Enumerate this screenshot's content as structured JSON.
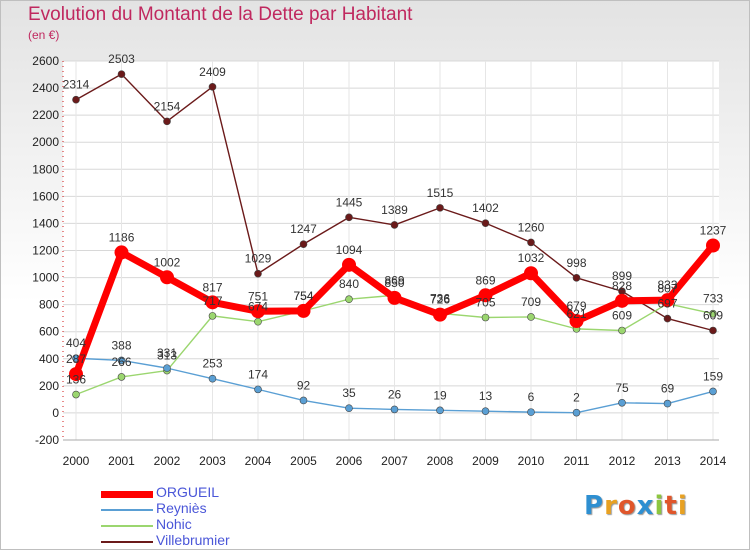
{
  "header": {
    "title": "Evolution du Montant de la Dette par Habitant",
    "unit": "(en €)"
  },
  "logo": {
    "letters": [
      "P",
      "r",
      "o",
      "x",
      "i",
      "t",
      "i"
    ],
    "colors": [
      "#2e8fd1",
      "#e8a122",
      "#e0562b",
      "#2e8fd1",
      "#8dc63f",
      "#e0562b",
      "#e8a122"
    ]
  },
  "chart_data": {
    "type": "line",
    "x": [
      "2000",
      "2001",
      "2002",
      "2003",
      "2004",
      "2005",
      "2006",
      "2007",
      "2008",
      "2009",
      "2010",
      "2011",
      "2012",
      "2013",
      "2014"
    ],
    "ylim": [
      -200,
      2600
    ],
    "yticks": [
      -200,
      0,
      200,
      400,
      600,
      800,
      1000,
      1200,
      1400,
      1600,
      1800,
      2000,
      2200,
      2400,
      2600
    ],
    "grid": true,
    "legend_position": "bottom-left",
    "series": [
      {
        "name": "Villebrumier",
        "color": "#6b1a1a",
        "width": 1.4,
        "marker": 3.5,
        "values": [
          2314,
          2503,
          2154,
          2409,
          1029,
          1247,
          1445,
          1389,
          1515,
          1402,
          1260,
          998,
          899,
          697,
          609
        ]
      },
      {
        "name": "Nohic",
        "color": "#9bd66f",
        "width": 1.4,
        "marker": 3.5,
        "values": [
          136,
          266,
          313,
          717,
          674,
          754,
          840,
          869,
          736,
          705,
          709,
          621,
          609,
          807,
          733
        ]
      },
      {
        "name": "Reyniès",
        "color": "#5a9fd4",
        "width": 1.4,
        "marker": 3.5,
        "values": [
          404,
          388,
          331,
          253,
          174,
          92,
          35,
          26,
          19,
          13,
          6,
          2,
          75,
          69,
          159
        ]
      },
      {
        "name": "ORGUEIL",
        "color": "#ff0000",
        "width": 7,
        "marker": 7,
        "values": [
          287,
          1186,
          1002,
          817,
          751,
          754,
          1094,
          850,
          726,
          869,
          1032,
          679,
          828,
          833,
          1237
        ]
      }
    ]
  }
}
